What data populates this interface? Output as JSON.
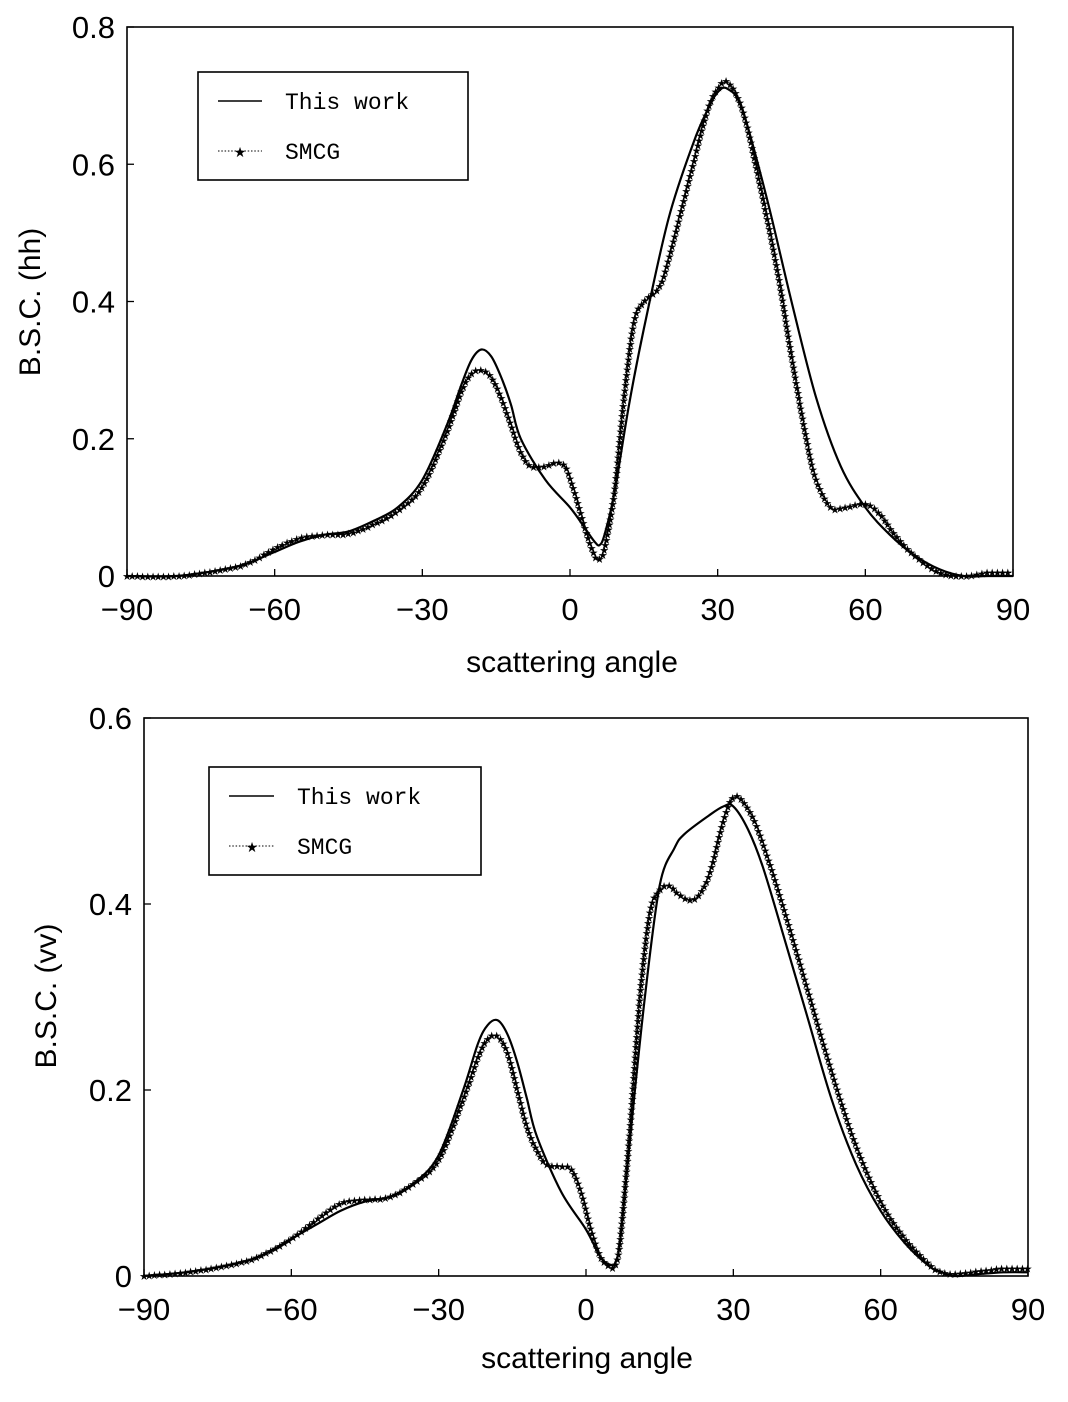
{
  "chart_data": [
    {
      "type": "line",
      "ylabel": "B.S.C. (hh)",
      "xlabel": "scattering  angle",
      "xlim": [
        -90,
        90
      ],
      "ylim": [
        0,
        0.8
      ],
      "xticks": [
        -90,
        -60,
        -30,
        0,
        30,
        60,
        90
      ],
      "xtick_labels": [
        "−90",
        "−60",
        "−30",
        "0",
        "30",
        "60",
        "90"
      ],
      "yticks": [
        0,
        0.2,
        0.4,
        0.6,
        0.8
      ],
      "ytick_labels": [
        "0",
        "0.2",
        "0.4",
        "0.6",
        "0.8"
      ],
      "legend_position": "top-left",
      "series": [
        {
          "name": "This work",
          "style": "solid",
          "color": "#000000",
          "x": [
            -90,
            -80,
            -70,
            -65,
            -60,
            -55,
            -50,
            -45,
            -40,
            -35,
            -30,
            -25,
            -22,
            -20,
            -18,
            -16,
            -14,
            -12,
            -10,
            -5,
            0,
            3,
            5,
            6,
            7,
            9,
            12,
            15,
            20,
            25,
            28,
            30,
            32,
            35,
            40,
            45,
            50,
            55,
            60,
            65,
            70,
            75,
            80,
            85,
            90
          ],
          "y": [
            0.0,
            0.0,
            0.01,
            0.02,
            0.035,
            0.05,
            0.06,
            0.065,
            0.08,
            0.1,
            0.14,
            0.22,
            0.28,
            0.315,
            0.33,
            0.32,
            0.29,
            0.25,
            0.2,
            0.14,
            0.1,
            0.07,
            0.05,
            0.045,
            0.06,
            0.12,
            0.25,
            0.36,
            0.52,
            0.63,
            0.68,
            0.705,
            0.71,
            0.68,
            0.55,
            0.4,
            0.26,
            0.16,
            0.1,
            0.06,
            0.03,
            0.01,
            0.0,
            0.0,
            0.0
          ]
        },
        {
          "name": "SMCG",
          "style": "dotted-star",
          "color": "#000000",
          "x": [
            -90,
            -80,
            -70,
            -65,
            -60,
            -55,
            -50,
            -45,
            -40,
            -35,
            -30,
            -25,
            -22,
            -20,
            -18,
            -16,
            -14,
            -12,
            -10,
            -8,
            -5,
            -3,
            -1,
            1,
            3,
            5,
            6,
            7,
            9,
            11,
            13,
            15,
            18,
            20,
            25,
            28,
            30,
            32,
            35,
            38,
            42,
            45,
            48,
            50,
            53,
            56,
            60,
            63,
            66,
            70,
            75,
            80,
            85,
            90
          ],
          "y": [
            0.0,
            0.0,
            0.01,
            0.02,
            0.04,
            0.055,
            0.06,
            0.062,
            0.075,
            0.095,
            0.13,
            0.21,
            0.27,
            0.295,
            0.3,
            0.29,
            0.26,
            0.22,
            0.18,
            0.16,
            0.16,
            0.165,
            0.16,
            0.12,
            0.07,
            0.03,
            0.025,
            0.04,
            0.12,
            0.26,
            0.37,
            0.4,
            0.42,
            0.46,
            0.6,
            0.68,
            0.71,
            0.72,
            0.68,
            0.59,
            0.45,
            0.32,
            0.2,
            0.14,
            0.1,
            0.1,
            0.105,
            0.09,
            0.06,
            0.03,
            0.005,
            0.0,
            0.005,
            0.005
          ]
        }
      ]
    },
    {
      "type": "line",
      "ylabel": "B.S.C. (vv)",
      "xlabel": "scattering  angle",
      "xlim": [
        -90,
        90
      ],
      "ylim": [
        0,
        0.6
      ],
      "xticks": [
        -90,
        -60,
        -30,
        0,
        30,
        60,
        90
      ],
      "xtick_labels": [
        "−90",
        "−60",
        "−30",
        "0",
        "30",
        "60",
        "90"
      ],
      "yticks": [
        0,
        0.2,
        0.4,
        0.6
      ],
      "ytick_labels": [
        "0",
        "0.2",
        "0.4",
        "0.6"
      ],
      "legend_position": "top-left",
      "series": [
        {
          "name": "This work",
          "style": "solid",
          "color": "#000000",
          "x": [
            -90,
            -80,
            -70,
            -65,
            -60,
            -55,
            -50,
            -45,
            -40,
            -35,
            -30,
            -25,
            -22,
            -20,
            -18,
            -16,
            -14,
            -12,
            -10,
            -5,
            0,
            3,
            5,
            6,
            7,
            9,
            12,
            15,
            18,
            20,
            25,
            28,
            30,
            33,
            36,
            40,
            45,
            50,
            55,
            60,
            65,
            70,
            72,
            75,
            80,
            85,
            90
          ],
          "y": [
            0.0,
            0.005,
            0.015,
            0.025,
            0.04,
            0.055,
            0.07,
            0.08,
            0.085,
            0.1,
            0.13,
            0.2,
            0.25,
            0.27,
            0.275,
            0.26,
            0.23,
            0.19,
            0.15,
            0.09,
            0.05,
            0.02,
            0.012,
            0.015,
            0.04,
            0.15,
            0.3,
            0.42,
            0.46,
            0.475,
            0.495,
            0.505,
            0.505,
            0.48,
            0.44,
            0.37,
            0.28,
            0.19,
            0.12,
            0.07,
            0.035,
            0.01,
            0.005,
            0.0,
            0.002,
            0.004,
            0.004
          ]
        },
        {
          "name": "SMCG",
          "style": "dotted-star",
          "color": "#000000",
          "x": [
            -90,
            -80,
            -70,
            -65,
            -60,
            -55,
            -50,
            -45,
            -40,
            -35,
            -30,
            -25,
            -22,
            -20,
            -18,
            -16,
            -14,
            -12,
            -10,
            -8,
            -5,
            -3,
            -1,
            1,
            3,
            5,
            6,
            7,
            9,
            11,
            13,
            15,
            17,
            19,
            22,
            25,
            28,
            30,
            32,
            35,
            40,
            45,
            50,
            55,
            60,
            65,
            70,
            72,
            75,
            80,
            85,
            90
          ],
          "y": [
            0.0,
            0.005,
            0.015,
            0.025,
            0.04,
            0.06,
            0.078,
            0.082,
            0.085,
            0.1,
            0.125,
            0.19,
            0.235,
            0.255,
            0.258,
            0.24,
            0.2,
            0.16,
            0.135,
            0.12,
            0.118,
            0.115,
            0.09,
            0.05,
            0.02,
            0.01,
            0.012,
            0.04,
            0.16,
            0.3,
            0.39,
            0.415,
            0.42,
            0.41,
            0.405,
            0.43,
            0.49,
            0.515,
            0.51,
            0.48,
            0.4,
            0.31,
            0.22,
            0.14,
            0.08,
            0.04,
            0.012,
            0.005,
            0.002,
            0.005,
            0.008,
            0.008
          ]
        }
      ]
    }
  ]
}
